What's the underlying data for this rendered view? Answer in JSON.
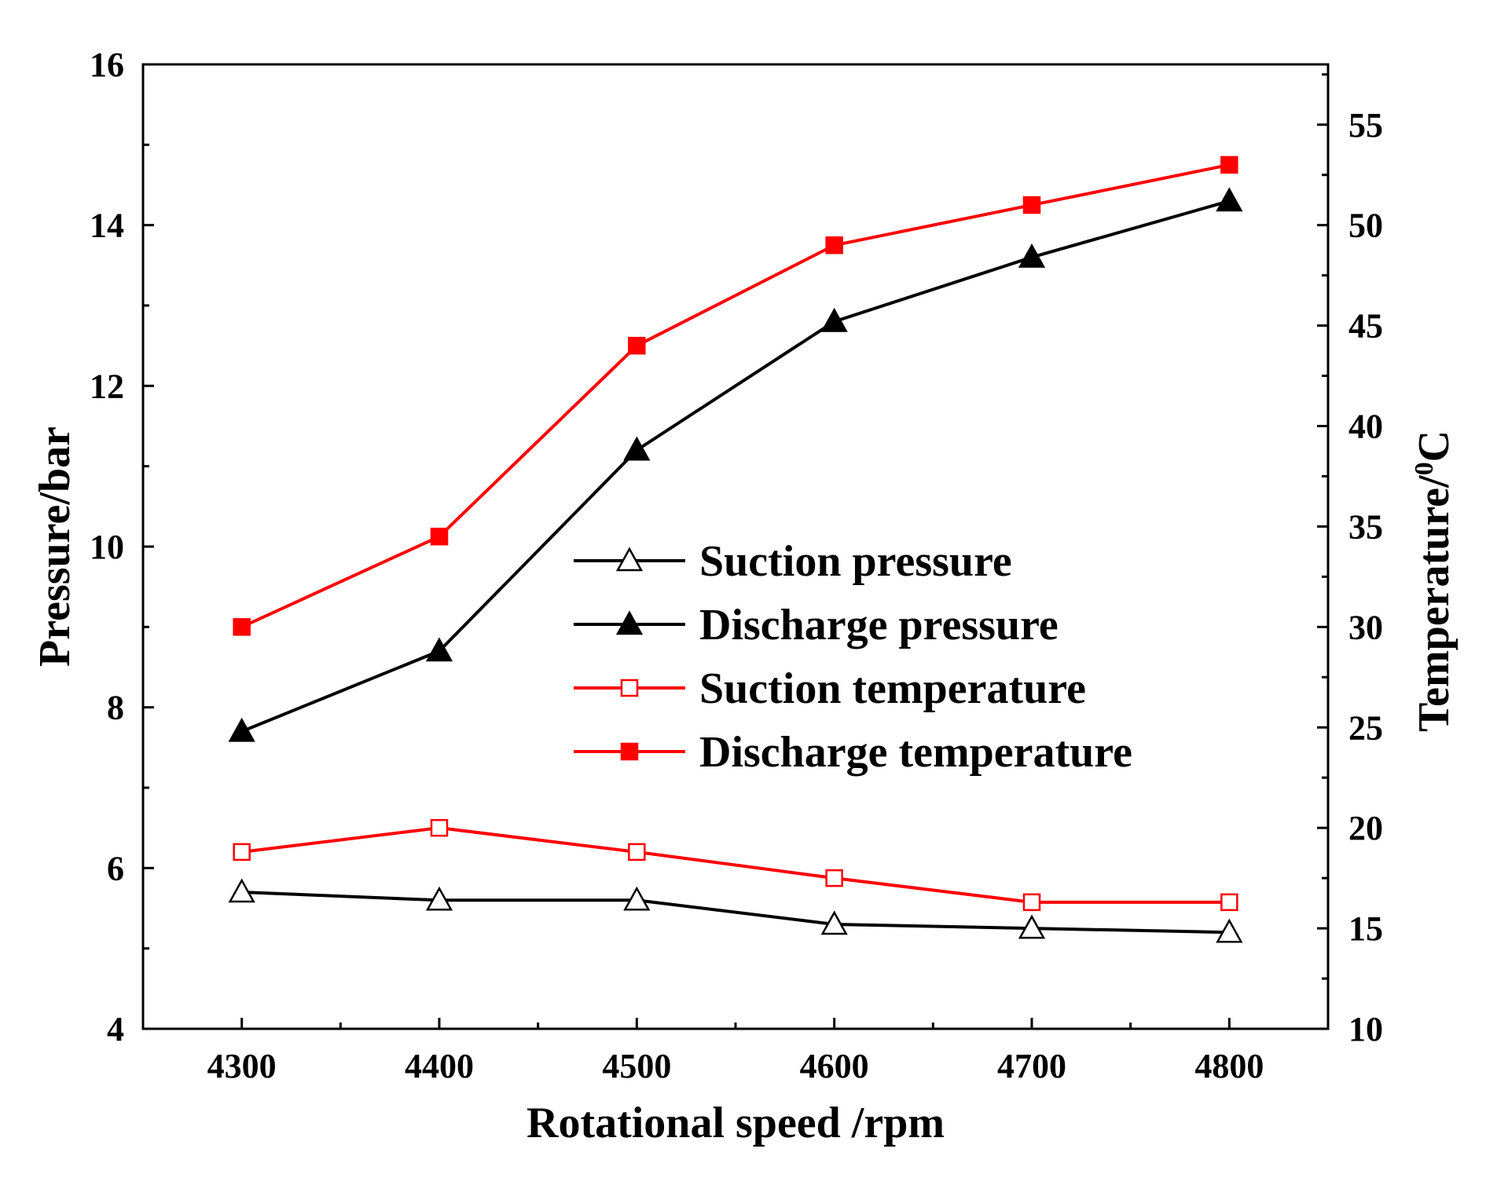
{
  "chart_data": {
    "type": "line",
    "title": "",
    "xlabel": "Rotational speed /rpm",
    "ylabel": "Pressure/bar",
    "y2label_base": "Temperature/",
    "y2label_sup": "0",
    "y2label_unit": "C",
    "xlim": [
      4250,
      4850
    ],
    "ylim": [
      4,
      16
    ],
    "y2lim": [
      10,
      58
    ],
    "x_ticks": [
      4300,
      4400,
      4500,
      4600,
      4700,
      4800
    ],
    "y_ticks": [
      4,
      6,
      8,
      10,
      12,
      14,
      16
    ],
    "y2_ticks": [
      10,
      15,
      20,
      25,
      30,
      35,
      40,
      45,
      50,
      55
    ],
    "x": [
      4300,
      4400,
      4500,
      4600,
      4700,
      4800
    ],
    "legend_position": "center-right",
    "series": [
      {
        "name": "Suction pressure",
        "axis": "left",
        "color": "#000000",
        "marker": "triangle-open",
        "values": [
          5.7,
          5.6,
          5.6,
          5.3,
          5.25,
          5.2
        ]
      },
      {
        "name": "Discharge pressure",
        "axis": "left",
        "color": "#000000",
        "marker": "triangle-filled",
        "values": [
          7.7,
          8.7,
          11.2,
          12.8,
          13.6,
          14.3
        ]
      },
      {
        "name": "Suction temperature",
        "axis": "right",
        "color": "#ff0000",
        "marker": "square-open",
        "values": [
          18.8,
          20.0,
          18.8,
          17.5,
          16.3,
          16.3
        ]
      },
      {
        "name": "Discharge temperature",
        "axis": "right",
        "color": "#ff0000",
        "marker": "square-filled",
        "values": [
          30.0,
          34.5,
          44.0,
          49.0,
          51.0,
          53.0
        ]
      }
    ]
  }
}
